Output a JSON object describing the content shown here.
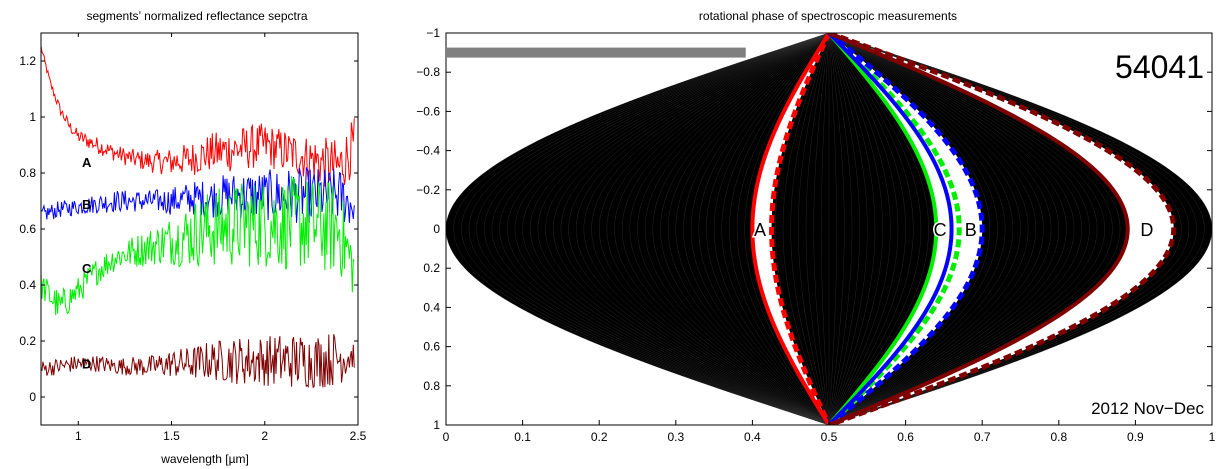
{
  "chart_data": [
    {
      "type": "line",
      "title": "segments’ normalized reflectance sepctra",
      "xlabel": "wavelength [µm]",
      "ylabel": "",
      "xlim": [
        0.8,
        2.5
      ],
      "ylim": [
        -0.1,
        1.3
      ],
      "x_ticks": [
        1,
        1.5,
        2,
        2.5
      ],
      "y_ticks": [
        0,
        0.2,
        0.4,
        0.6,
        0.8,
        1,
        1.2
      ],
      "x_tick_labels": [
        "1",
        "1.5",
        "2",
        "2.5"
      ],
      "y_tick_labels": [
        "0",
        "0.2",
        "0.4",
        "0.6",
        "0.8",
        "1",
        "1.2"
      ],
      "series": [
        {
          "name": "A",
          "color": "#ff0000",
          "x": [
            0.8,
            0.85,
            0.9,
            0.95,
            1.0,
            1.1,
            1.2,
            1.3,
            1.4,
            1.5,
            1.6,
            1.7,
            1.8,
            1.9,
            2.0,
            2.1,
            2.2,
            2.3,
            2.4,
            2.48
          ],
          "y": [
            1.25,
            1.12,
            1.03,
            0.97,
            0.93,
            0.9,
            0.87,
            0.85,
            0.84,
            0.84,
            0.85,
            0.87,
            0.88,
            0.89,
            0.9,
            0.88,
            0.86,
            0.84,
            0.82,
            0.9
          ],
          "noise": [
            0.01,
            0.015,
            0.02,
            0.02,
            0.025,
            0.03,
            0.03,
            0.035,
            0.04,
            0.05,
            0.06,
            0.07,
            0.08,
            0.08,
            0.08,
            0.08,
            0.08,
            0.09,
            0.1,
            0.1
          ]
        },
        {
          "name": "B",
          "color": "#0000ff",
          "x": [
            0.8,
            0.9,
            1.0,
            1.1,
            1.2,
            1.3,
            1.4,
            1.5,
            1.6,
            1.7,
            1.8,
            1.9,
            2.0,
            2.1,
            2.2,
            2.3,
            2.4,
            2.48
          ],
          "y": [
            0.65,
            0.67,
            0.68,
            0.69,
            0.7,
            0.7,
            0.7,
            0.7,
            0.71,
            0.71,
            0.72,
            0.72,
            0.72,
            0.72,
            0.72,
            0.72,
            0.72,
            0.68
          ],
          "noise": [
            0.03,
            0.03,
            0.03,
            0.035,
            0.04,
            0.04,
            0.04,
            0.05,
            0.06,
            0.07,
            0.08,
            0.09,
            0.09,
            0.1,
            0.1,
            0.1,
            0.1,
            0.08
          ]
        },
        {
          "name": "C",
          "color": "#00ee00",
          "x": [
            0.8,
            0.9,
            1.0,
            1.1,
            1.2,
            1.3,
            1.4,
            1.5,
            1.6,
            1.7,
            1.8,
            1.9,
            2.0,
            2.1,
            2.2,
            2.3,
            2.4,
            2.48
          ],
          "y": [
            0.4,
            0.32,
            0.38,
            0.45,
            0.5,
            0.52,
            0.54,
            0.56,
            0.58,
            0.6,
            0.61,
            0.62,
            0.62,
            0.62,
            0.62,
            0.61,
            0.6,
            0.45
          ],
          "noise": [
            0.05,
            0.06,
            0.05,
            0.05,
            0.05,
            0.06,
            0.07,
            0.09,
            0.12,
            0.14,
            0.15,
            0.16,
            0.16,
            0.17,
            0.17,
            0.17,
            0.17,
            0.1
          ]
        },
        {
          "name": "D",
          "color": "#800000",
          "x": [
            0.8,
            0.9,
            1.0,
            1.1,
            1.2,
            1.3,
            1.4,
            1.5,
            1.6,
            1.7,
            1.8,
            1.9,
            2.0,
            2.1,
            2.2,
            2.3,
            2.4,
            2.48
          ],
          "y": [
            0.1,
            0.11,
            0.12,
            0.12,
            0.11,
            0.11,
            0.11,
            0.12,
            0.12,
            0.13,
            0.13,
            0.13,
            0.13,
            0.13,
            0.13,
            0.13,
            0.14,
            0.15
          ],
          "noise": [
            0.03,
            0.03,
            0.03,
            0.03,
            0.03,
            0.035,
            0.04,
            0.05,
            0.06,
            0.07,
            0.08,
            0.09,
            0.09,
            0.1,
            0.1,
            0.1,
            0.1,
            0.05
          ]
        }
      ],
      "series_labels": [
        {
          "text": "A",
          "x": 1.02,
          "y": 0.84
        },
        {
          "text": "B",
          "x": 1.02,
          "y": 0.69
        },
        {
          "text": "C",
          "x": 1.02,
          "y": 0.46
        },
        {
          "text": "D",
          "x": 1.02,
          "y": 0.12
        }
      ]
    },
    {
      "type": "line",
      "title": "rotational phase of spectroscopic measurements",
      "xlabel": "",
      "ylabel": "",
      "xlim": [
        0,
        1
      ],
      "ylim": [
        -1,
        1
      ],
      "y_reversed": true,
      "x_ticks": [
        0,
        0.1,
        0.2,
        0.3,
        0.4,
        0.5,
        0.6,
        0.7,
        0.8,
        0.9,
        1
      ],
      "y_ticks": [
        -1,
        -0.8,
        -0.6,
        -0.4,
        -0.2,
        0,
        0.2,
        0.4,
        0.6,
        0.8,
        1
      ],
      "x_tick_labels": [
        "0",
        "0.1",
        "0.2",
        "0.3",
        "0.4",
        "0.5",
        "0.6",
        "0.7",
        "0.8",
        "0.9",
        "1"
      ],
      "y_tick_labels": [
        "−1",
        "−0.8",
        "−0.6",
        "−0.4",
        "−0.2",
        "0",
        "0.2",
        "0.4",
        "0.6",
        "0.8",
        "1"
      ],
      "background_color": "#000000",
      "progress_bar": {
        "color": "#808080",
        "x_start": 0,
        "x_end": 0.39,
        "y": -0.9
      },
      "annotation_top_right": "54041",
      "annotation_bottom_right": "2012 Nov−Dec",
      "curves": [
        {
          "name": "A",
          "color": "#ff0000",
          "solid_phase": 0.4,
          "dashed_phase": 0.425,
          "label_x": 0.41
        },
        {
          "name": "C",
          "color": "#00ee00",
          "solid_phase": 0.64,
          "dashed_phase": 0.67,
          "label_x": 0.645
        },
        {
          "name": "B",
          "color": "#0000ff",
          "solid_phase": 0.66,
          "dashed_phase": 0.7,
          "label_x": 0.685
        },
        {
          "name": "D",
          "color": "#800000",
          "solid_phase": 0.89,
          "dashed_phase": 0.95,
          "label_x": 0.915
        }
      ]
    }
  ]
}
